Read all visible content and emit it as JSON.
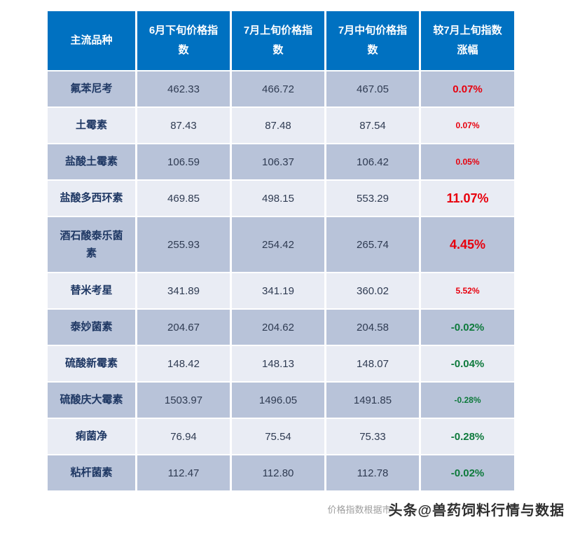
{
  "colors": {
    "header_bg": "#0071c1",
    "header_text": "#ffffff",
    "row_dark": "#b8c3d9",
    "row_light": "#e9ecf4",
    "name_text": "#1f3864",
    "number_text": "#2f3b52",
    "up": "#e8000d",
    "down": "#0e7a3c"
  },
  "chart_data": {
    "type": "table",
    "columns": [
      "主流品种",
      "6月下旬价格指\n数",
      "7月上旬价格指\n数",
      "7月中旬价格指\n数",
      "较7月上旬指数\n涨幅"
    ],
    "rows": [
      {
        "name": "氟苯尼考",
        "values": [
          "462.33",
          "466.72",
          "467.05"
        ],
        "change": "0.07%",
        "trend": "up",
        "size": "md"
      },
      {
        "name": "土霉素",
        "values": [
          "87.43",
          "87.48",
          "87.54"
        ],
        "change": "0.07%",
        "trend": "up",
        "size": "sm"
      },
      {
        "name": "盐酸土霉素",
        "values": [
          "106.59",
          "106.37",
          "106.42"
        ],
        "change": "0.05%",
        "trend": "up",
        "size": "sm"
      },
      {
        "name": "盐酸多西环素",
        "values": [
          "469.85",
          "498.15",
          "553.29"
        ],
        "change": "11.07%",
        "trend": "up",
        "size": "lg"
      },
      {
        "name": "酒石酸泰乐菌\n素",
        "values": [
          "255.93",
          "254.42",
          "265.74"
        ],
        "change": "4.45%",
        "trend": "up",
        "size": "lg"
      },
      {
        "name": "替米考星",
        "values": [
          "341.89",
          "341.19",
          "360.02"
        ],
        "change": "5.52%",
        "trend": "up",
        "size": "sm"
      },
      {
        "name": "泰妙菌素",
        "values": [
          "204.67",
          "204.62",
          "204.58"
        ],
        "change": "-0.02%",
        "trend": "down",
        "size": "md"
      },
      {
        "name": "硫酸新霉素",
        "values": [
          "148.42",
          "148.13",
          "148.07"
        ],
        "change": "-0.04%",
        "trend": "down",
        "size": "md"
      },
      {
        "name": "硫酸庆大霉素",
        "values": [
          "1503.97",
          "1496.05",
          "1491.85"
        ],
        "change": "-0.28%",
        "trend": "down",
        "size": "sm"
      },
      {
        "name": "痢菌净",
        "values": [
          "76.94",
          "75.54",
          "75.33"
        ],
        "change": "-0.28%",
        "trend": "down",
        "size": "md"
      },
      {
        "name": "粘杆菌素",
        "values": [
          "112.47",
          "112.80",
          "112.78"
        ],
        "change": "-0.02%",
        "trend": "down",
        "size": "md"
      }
    ]
  },
  "footer": {
    "note": "价格指数根据市",
    "watermark": "头条@兽药饲料行情与数据"
  }
}
